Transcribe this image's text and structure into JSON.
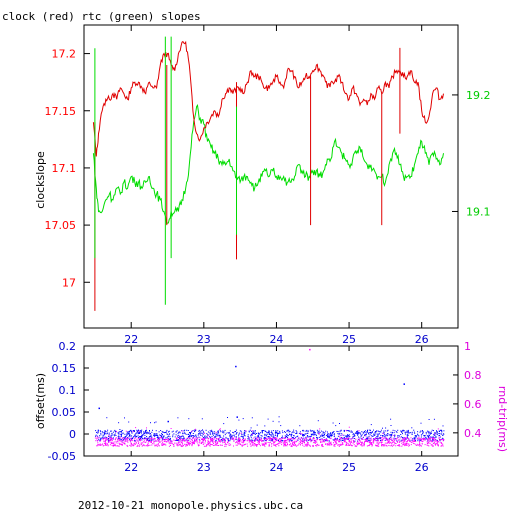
{
  "chart_data": [
    {
      "type": "line",
      "title": "clock (red) rtc (green) slopes",
      "ylabel": "clockslope",
      "xlim": [
        21.35,
        26.5
      ],
      "x_ticks": [
        "22",
        "23",
        "24",
        "25",
        "26"
      ],
      "y_left": {
        "lim": [
          16.96,
          17.225
        ],
        "ticks": [
          "17",
          "17.05",
          "17.1",
          "17.15",
          "17.2"
        ],
        "color": "#ff0000"
      },
      "y_right": {
        "lim": [
          19.0,
          19.26
        ],
        "ticks": [
          "19.1",
          "19.2"
        ],
        "color": "#00cc00"
      },
      "series": [
        {
          "name": "clock",
          "color": "#e00000",
          "axis": "left",
          "x": [
            21.48,
            21.52,
            21.55,
            21.6,
            21.65,
            21.7,
            21.75,
            21.8,
            21.85,
            21.9,
            21.95,
            22.0,
            22.05,
            22.1,
            22.15,
            22.2,
            22.25,
            22.3,
            22.35,
            22.4,
            22.45,
            22.5,
            22.55,
            22.6,
            22.65,
            22.7,
            22.75,
            22.8,
            22.85,
            22.9,
            22.95,
            23.0,
            23.05,
            23.1,
            23.15,
            23.2,
            23.25,
            23.3,
            23.35,
            23.4,
            23.45,
            23.5,
            23.55,
            23.6,
            23.65,
            23.7,
            23.75,
            23.8,
            23.85,
            23.9,
            23.95,
            24.0,
            24.05,
            24.1,
            24.15,
            24.2,
            24.25,
            24.3,
            24.35,
            24.4,
            24.45,
            24.5,
            24.55,
            24.6,
            24.65,
            24.7,
            24.75,
            24.8,
            24.85,
            24.9,
            24.95,
            25.0,
            25.05,
            25.1,
            25.15,
            25.2,
            25.25,
            25.3,
            25.35,
            25.4,
            25.45,
            25.5,
            25.55,
            25.6,
            25.65,
            25.7,
            25.75,
            25.8,
            25.85,
            25.9,
            25.95,
            26.0,
            26.05,
            26.1,
            26.15,
            26.2,
            26.25,
            26.3
          ],
          "y": [
            17.14,
            17.11,
            17.13,
            17.15,
            17.16,
            17.16,
            17.165,
            17.16,
            17.17,
            17.165,
            17.16,
            17.17,
            17.175,
            17.175,
            17.17,
            17.165,
            17.175,
            17.17,
            17.17,
            17.19,
            17.2,
            17.2,
            17.19,
            17.185,
            17.2,
            17.21,
            17.21,
            17.19,
            17.15,
            17.13,
            17.125,
            17.135,
            17.14,
            17.145,
            17.15,
            17.145,
            17.16,
            17.165,
            17.17,
            17.165,
            17.17,
            17.17,
            17.165,
            17.175,
            17.185,
            17.18,
            17.18,
            17.175,
            17.17,
            17.17,
            17.175,
            17.18,
            17.175,
            17.17,
            17.185,
            17.185,
            17.18,
            17.17,
            17.175,
            17.18,
            17.18,
            17.185,
            17.19,
            17.185,
            17.18,
            17.17,
            17.175,
            17.175,
            17.18,
            17.175,
            17.165,
            17.16,
            17.17,
            17.165,
            17.155,
            17.16,
            17.155,
            17.165,
            17.16,
            17.17,
            17.165,
            17.175,
            17.17,
            17.18,
            17.185,
            17.185,
            17.18,
            17.18,
            17.185,
            17.175,
            17.175,
            17.15,
            17.14,
            17.145,
            17.165,
            17.17,
            17.16,
            17.165
          ]
        },
        {
          "name": "rtc",
          "color": "#00dd00",
          "axis": "right",
          "x": [
            21.48,
            21.52,
            21.55,
            21.6,
            21.65,
            21.7,
            21.75,
            21.8,
            21.85,
            21.9,
            21.95,
            22.0,
            22.05,
            22.1,
            22.15,
            22.2,
            22.25,
            22.3,
            22.35,
            22.4,
            22.45,
            22.5,
            22.55,
            22.6,
            22.65,
            22.7,
            22.75,
            22.8,
            22.85,
            22.9,
            22.95,
            23.0,
            23.05,
            23.1,
            23.15,
            23.2,
            23.25,
            23.3,
            23.35,
            23.4,
            23.45,
            23.5,
            23.55,
            23.6,
            23.65,
            23.7,
            23.75,
            23.8,
            23.85,
            23.9,
            23.95,
            24.0,
            24.05,
            24.1,
            24.15,
            24.2,
            24.25,
            24.3,
            24.35,
            24.4,
            24.45,
            24.5,
            24.55,
            24.6,
            24.65,
            24.7,
            24.75,
            24.8,
            24.85,
            24.9,
            24.95,
            25.0,
            25.05,
            25.1,
            25.15,
            25.2,
            25.25,
            25.3,
            25.35,
            25.4,
            25.45,
            25.5,
            25.55,
            25.6,
            25.65,
            25.7,
            25.75,
            25.8,
            25.85,
            25.9,
            25.95,
            26.0,
            26.05,
            26.1,
            26.15,
            26.2,
            26.25,
            26.3
          ],
          "y": [
            19.15,
            19.12,
            19.1,
            19.1,
            19.11,
            19.115,
            19.11,
            19.12,
            19.115,
            19.125,
            19.12,
            19.13,
            19.125,
            19.125,
            19.12,
            19.125,
            19.13,
            19.12,
            19.115,
            19.11,
            19.1,
            19.09,
            19.1,
            19.1,
            19.1,
            19.11,
            19.12,
            19.14,
            19.17,
            19.19,
            19.18,
            19.175,
            19.16,
            19.155,
            19.15,
            19.145,
            19.14,
            19.14,
            19.145,
            19.135,
            19.13,
            19.125,
            19.13,
            19.13,
            19.125,
            19.12,
            19.125,
            19.13,
            19.135,
            19.13,
            19.135,
            19.13,
            19.13,
            19.13,
            19.125,
            19.125,
            19.13,
            19.14,
            19.135,
            19.13,
            19.13,
            19.135,
            19.135,
            19.13,
            19.135,
            19.145,
            19.145,
            19.16,
            19.155,
            19.15,
            19.145,
            19.14,
            19.145,
            19.15,
            19.155,
            19.145,
            19.14,
            19.14,
            19.135,
            19.13,
            19.13,
            19.125,
            19.14,
            19.15,
            19.15,
            19.14,
            19.13,
            19.13,
            19.13,
            19.14,
            19.15,
            19.16,
            19.15,
            19.14,
            19.15,
            19.145,
            19.14,
            19.15
          ]
        }
      ],
      "spikes": [
        {
          "series": "clock",
          "x": 21.5,
          "y_min": 16.975,
          "y_max": 17.14
        },
        {
          "series": "clock",
          "x": 22.49,
          "y_min": 17.05,
          "y_max": 17.19
        },
        {
          "series": "clock",
          "x": 23.45,
          "y_min": 17.02,
          "y_max": 17.175
        },
        {
          "series": "clock",
          "x": 24.47,
          "y_min": 17.05,
          "y_max": 17.18
        },
        {
          "series": "clock",
          "x": 25.45,
          "y_min": 17.05,
          "y_max": 17.165
        },
        {
          "series": "clock",
          "x": 25.7,
          "y_min": 17.13,
          "y_max": 17.205
        },
        {
          "series": "rtc",
          "x": 21.5,
          "y_min": 19.06,
          "y_max": 19.24
        },
        {
          "series": "rtc",
          "x": 22.47,
          "y_min": 19.02,
          "y_max": 19.25
        },
        {
          "series": "rtc",
          "x": 22.55,
          "y_min": 19.06,
          "y_max": 19.25
        },
        {
          "series": "rtc",
          "x": 23.45,
          "y_min": 19.08,
          "y_max": 19.19
        }
      ]
    },
    {
      "type": "scatter",
      "ylabel_left": "offset(ms)",
      "ylabel_right": "rnd-trip(ms)",
      "xlim": [
        21.35,
        26.5
      ],
      "x_ticks": [
        "22",
        "23",
        "24",
        "25",
        "26"
      ],
      "y_left": {
        "lim": [
          -0.05,
          0.2
        ],
        "ticks": [
          "-0.05",
          "0",
          "0.05",
          "0.1",
          "0.15",
          "0.2"
        ],
        "color": "#0000cc"
      },
      "y_right": {
        "lim": [
          0.24,
          1.0
        ],
        "ticks": [
          "0.4",
          "0.6",
          "0.8",
          "1"
        ],
        "color": "#dd00dd"
      },
      "series": [
        {
          "name": "offset",
          "color": "#0000ff",
          "axis": "left",
          "x_range": [
            21.5,
            26.3
          ],
          "y_band": [
            -0.015,
            0.01
          ],
          "outliers": [
            [
              21.55,
              0.06
            ],
            [
              22.5,
              0.03
            ],
            [
              23.43,
              0.155
            ],
            [
              23.45,
              0.04
            ],
            [
              25.75,
              0.115
            ]
          ]
        },
        {
          "name": "rnd-trip",
          "color": "#ff00ff",
          "axis": "right",
          "x_range": [
            21.5,
            26.3
          ],
          "y_band": [
            0.31,
            0.37
          ],
          "outliers": [
            [
              24.45,
              0.98
            ]
          ]
        }
      ]
    }
  ],
  "footer": "2012-10-21  monopole.physics.ubc.ca"
}
